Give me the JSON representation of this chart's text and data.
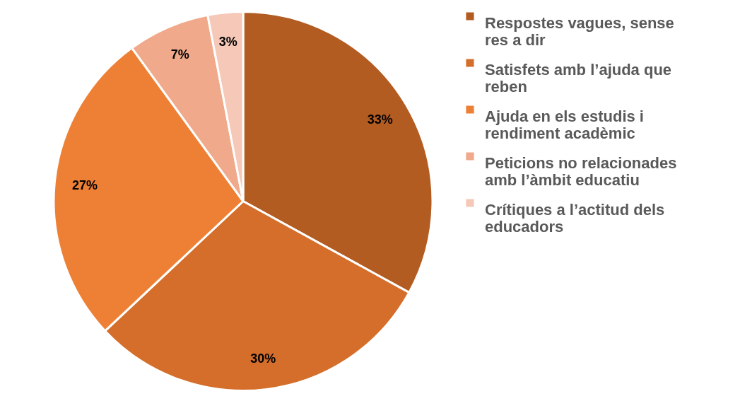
{
  "chart_data": {
    "type": "pie",
    "categories": [
      "Respostes vagues, sense res a dir",
      "Satisfets amb l’ajuda que reben",
      "Ajuda en els estudis i rendiment acadèmic",
      "Peticions no relacionades amb l’àmbit educatiu",
      "Crítiques a l’actitud dels educadors"
    ],
    "values": [
      33,
      30,
      27,
      7,
      3
    ],
    "value_labels": [
      "33%",
      "30%",
      "27%",
      "7%",
      "3%"
    ],
    "colors": [
      "#b35c22",
      "#d46e2a",
      "#ee8035",
      "#f0a98a",
      "#f5c8b8"
    ],
    "legend": "right"
  }
}
